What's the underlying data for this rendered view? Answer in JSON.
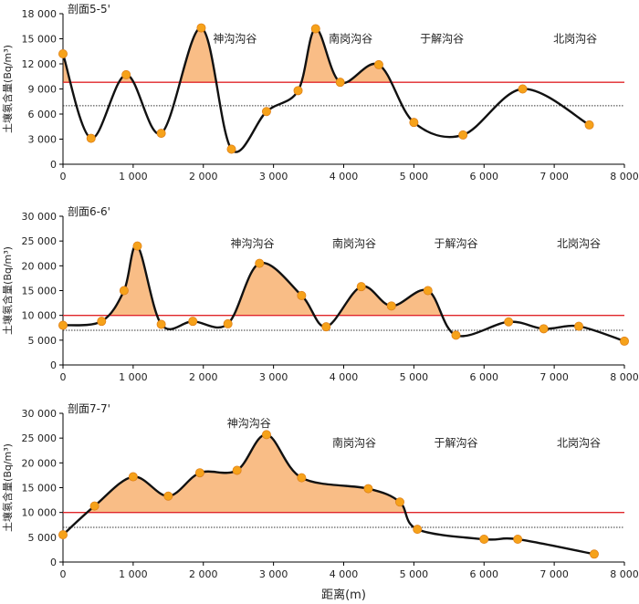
{
  "chart_data": [
    {
      "type": "line",
      "title": "剖面5-5'",
      "ylabel": "土壤氡含量(Bq/m³)",
      "xlabel": "",
      "xlim": [
        0,
        8000
      ],
      "ylim": [
        0,
        18000
      ],
      "xticks": [
        0,
        1000,
        2000,
        3000,
        4000,
        5000,
        6000,
        7000,
        8000
      ],
      "xtick_labels": [
        "0",
        "1 000",
        "2 000",
        "3 000",
        "4 000",
        "5 000",
        "6 000",
        "7 000",
        "8 000"
      ],
      "yticks": [
        0,
        3000,
        6000,
        9000,
        12000,
        15000,
        18000
      ],
      "ytick_labels": [
        "0",
        "3 000",
        "6 000",
        "9 000",
        "12 000",
        "15 000",
        "18 000"
      ],
      "threshold_red": 9800,
      "threshold_dotted": 7000,
      "points": [
        [
          0,
          13200
        ],
        [
          400,
          3100
        ],
        [
          900,
          10700
        ],
        [
          1400,
          3700
        ],
        [
          1970,
          16300
        ],
        [
          2400,
          1800
        ],
        [
          2900,
          6300
        ],
        [
          3350,
          8800
        ],
        [
          3600,
          16200
        ],
        [
          3950,
          9800
        ],
        [
          4500,
          11900
        ],
        [
          5000,
          5000
        ],
        [
          5700,
          3500
        ],
        [
          6550,
          9000
        ],
        [
          7500,
          4700
        ]
      ],
      "valleys": [
        {
          "name": "神沟沟谷",
          "x": 2450,
          "y": 15000
        },
        {
          "name": "南岗沟谷",
          "x": 4100,
          "y": 15000
        },
        {
          "name": "于解沟谷",
          "x": 5400,
          "y": 15000
        },
        {
          "name": "北岗沟谷",
          "x": 7300,
          "y": 15000
        }
      ]
    },
    {
      "type": "line",
      "title": "剖面6-6'",
      "ylabel": "土壤氡含量(Bq/m³)",
      "xlabel": "",
      "xlim": [
        0,
        8000
      ],
      "ylim": [
        0,
        30000
      ],
      "xticks": [
        0,
        1000,
        2000,
        3000,
        4000,
        5000,
        6000,
        7000,
        8000
      ],
      "xtick_labels": [
        "0",
        "1 000",
        "2 000",
        "3 000",
        "4 000",
        "5 000",
        "6 000",
        "7 000",
        "8 000"
      ],
      "yticks": [
        0,
        5000,
        10000,
        15000,
        20000,
        25000,
        30000
      ],
      "ytick_labels": [
        "0",
        "5 000",
        "10 000",
        "15 000",
        "20 000",
        "25 000",
        "30 000"
      ],
      "threshold_red": 10000,
      "threshold_dotted": 7000,
      "points": [
        [
          0,
          8000
        ],
        [
          550,
          8800
        ],
        [
          870,
          15000
        ],
        [
          1060,
          24000
        ],
        [
          1400,
          8200
        ],
        [
          1850,
          8800
        ],
        [
          2350,
          8300
        ],
        [
          2800,
          20500
        ],
        [
          3400,
          14000
        ],
        [
          3750,
          7700
        ],
        [
          4250,
          15800
        ],
        [
          4680,
          11900
        ],
        [
          5200,
          15000
        ],
        [
          5600,
          6000
        ],
        [
          6350,
          8700
        ],
        [
          6850,
          7300
        ],
        [
          7350,
          7800
        ],
        [
          8000,
          4800
        ]
      ],
      "valleys": [
        {
          "name": "神沟沟谷",
          "x": 2700,
          "y": 24500
        },
        {
          "name": "南岗沟谷",
          "x": 4150,
          "y": 24500
        },
        {
          "name": "于解沟谷",
          "x": 5600,
          "y": 24500
        },
        {
          "name": "北岗沟谷",
          "x": 7350,
          "y": 24500
        }
      ]
    },
    {
      "type": "line",
      "title": "剖面7-7'",
      "ylabel": "土壤氡含量(Bq/m³)",
      "xlabel": "距离(m)",
      "xlim": [
        0,
        8000
      ],
      "ylim": [
        0,
        30000
      ],
      "xticks": [
        0,
        1000,
        2000,
        3000,
        4000,
        5000,
        6000,
        7000,
        8000
      ],
      "xtick_labels": [
        "0",
        "1 000",
        "2 000",
        "3 000",
        "4 000",
        "5 000",
        "6 000",
        "7 000",
        "8 000"
      ],
      "yticks": [
        0,
        5000,
        10000,
        15000,
        20000,
        25000,
        30000
      ],
      "ytick_labels": [
        "0",
        "5 000",
        "10 000",
        "15 000",
        "20 000",
        "25 000",
        "30 000"
      ],
      "threshold_red": 10000,
      "threshold_dotted": 7000,
      "points": [
        [
          0,
          5500
        ],
        [
          450,
          11300
        ],
        [
          1000,
          17200
        ],
        [
          1500,
          13300
        ],
        [
          1950,
          18000
        ],
        [
          2480,
          18500
        ],
        [
          2900,
          25700
        ],
        [
          3400,
          17000
        ],
        [
          4350,
          14800
        ],
        [
          4800,
          12100
        ],
        [
          5050,
          6600
        ],
        [
          6000,
          4600
        ],
        [
          6480,
          4600
        ],
        [
          7570,
          1600
        ]
      ],
      "valleys": [
        {
          "name": "神沟沟谷",
          "x": 2650,
          "y": 28000
        },
        {
          "name": "南岗沟谷",
          "x": 4150,
          "y": 24000
        },
        {
          "name": "于解沟谷",
          "x": 5600,
          "y": 24000
        },
        {
          "name": "北岗沟谷",
          "x": 7350,
          "y": 24000
        }
      ]
    }
  ]
}
